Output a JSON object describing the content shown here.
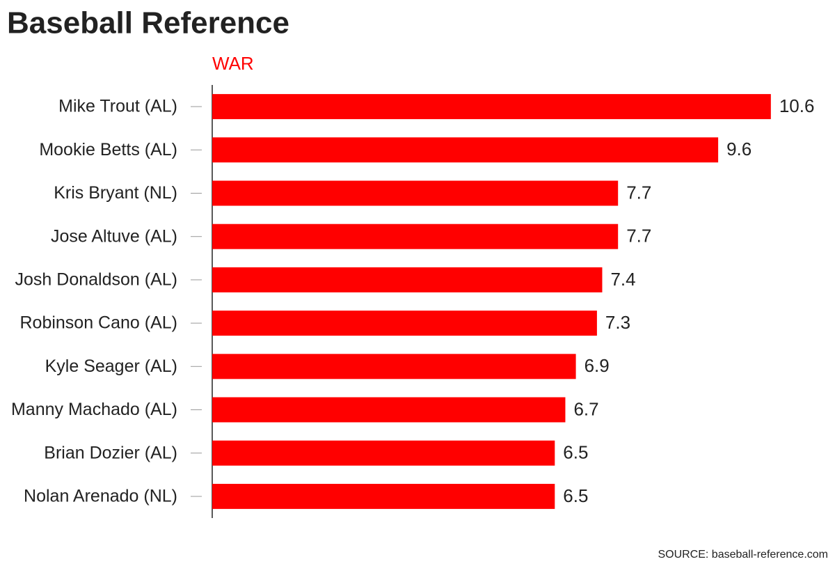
{
  "chart_data": {
    "type": "bar",
    "orientation": "horizontal",
    "title": "Baseball Reference",
    "axis_label": "WAR",
    "source": "SOURCE: baseball-reference.com",
    "categories": [
      "Mike Trout (AL)",
      "Mookie Betts (AL)",
      "Kris Bryant (NL)",
      "Jose Altuve (AL)",
      "Josh Donaldson (AL)",
      "Robinson Cano (AL)",
      "Kyle Seager (AL)",
      "Manny Machado (AL)",
      "Brian Dozier (AL)",
      "Nolan Arenado (NL)"
    ],
    "values": [
      10.6,
      9.6,
      7.7,
      7.7,
      7.4,
      7.3,
      6.9,
      6.7,
      6.5,
      6.5
    ],
    "color": "#ff0000",
    "xlim": [
      0,
      11.5
    ],
    "grid": false
  }
}
